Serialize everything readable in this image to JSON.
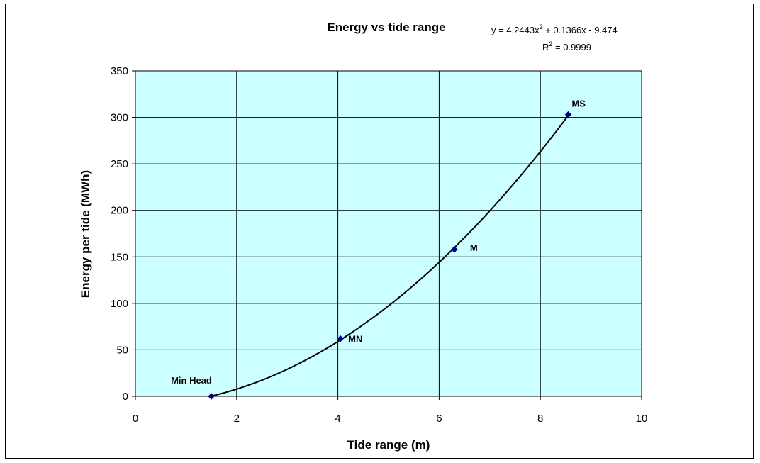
{
  "chart_data": {
    "type": "scatter",
    "title": "Energy vs tide range",
    "xlabel": "Tide range (m)",
    "ylabel": "Energy per tide (MWh)",
    "xlim": [
      0,
      10
    ],
    "ylim": [
      0,
      350
    ],
    "x_ticks": [
      "0",
      "2",
      "4",
      "6",
      "8",
      "10"
    ],
    "y_ticks": [
      "0",
      "50",
      "100",
      "150",
      "200",
      "250",
      "300",
      "350"
    ],
    "grid": true,
    "legend": "none",
    "plot_background": "#ccffff",
    "marker_color": "#000080",
    "trendline": {
      "type": "polynomial",
      "order": 2,
      "coefficients": [
        4.2443,
        0.1366,
        -9.474
      ],
      "equation_parts": [
        "y = 4.2443x",
        "2",
        " + 0.1366x - 9.474"
      ],
      "r2_parts": [
        "R",
        "2",
        " = 0.9999"
      ],
      "color": "#000000"
    },
    "points": [
      {
        "label": "Min Head",
        "x": 1.5,
        "y": 0
      },
      {
        "label": "MN",
        "x": 4.05,
        "y": 62
      },
      {
        "label": "M",
        "x": 6.3,
        "y": 158
      },
      {
        "label": "MS",
        "x": 8.55,
        "y": 303
      }
    ]
  }
}
